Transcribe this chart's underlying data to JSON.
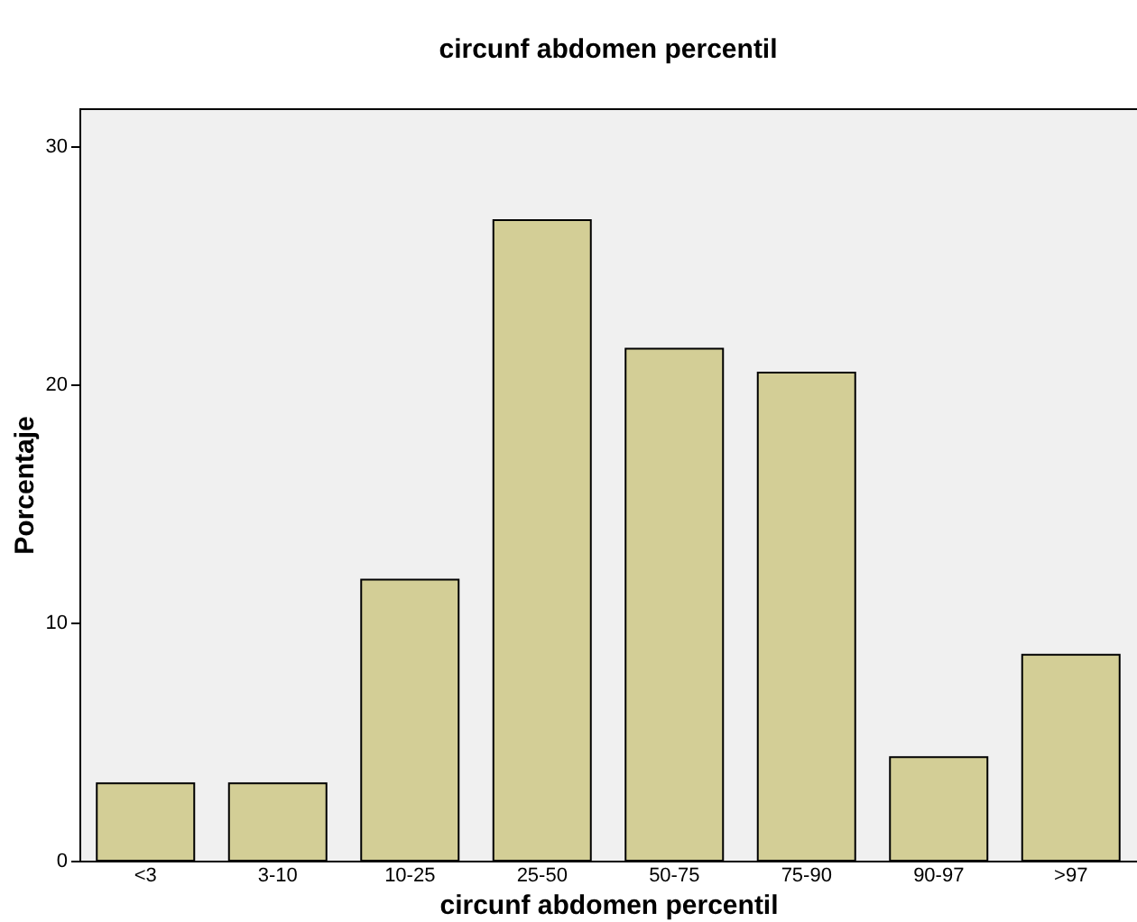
{
  "chart_data": {
    "type": "bar",
    "title": "circunf abdomen percentil",
    "xlabel": "circunf abdomen percentil",
    "ylabel": "Porcentaje",
    "categories": [
      "<3",
      "3-10",
      "10-25",
      "25-50",
      "50-75",
      "75-90",
      "90-97",
      ">97"
    ],
    "values": [
      3.25,
      3.25,
      11.8,
      26.9,
      21.5,
      20.5,
      4.35,
      8.65
    ],
    "color": "#d3ce96",
    "ylim": [
      0,
      31.6
    ],
    "yticks": [
      0,
      10,
      20,
      30
    ],
    "grid": false
  }
}
